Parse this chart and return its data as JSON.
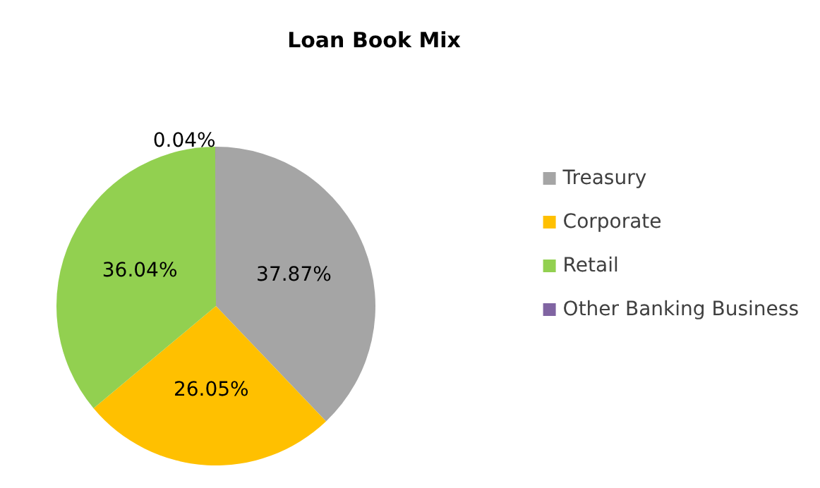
{
  "chart_data": {
    "type": "pie",
    "title": "Loan Book Mix",
    "categories": [
      "Treasury",
      "Corporate",
      "Retail",
      "Other Banking Business"
    ],
    "values": [
      37.87,
      26.05,
      36.04,
      0.04
    ],
    "colors": [
      "#a5a5a5",
      "#ffc000",
      "#92d050",
      "#8064a2"
    ],
    "value_labels": [
      "37.87%",
      "26.05%",
      "36.04%",
      "0.04%"
    ],
    "legend": "right"
  }
}
